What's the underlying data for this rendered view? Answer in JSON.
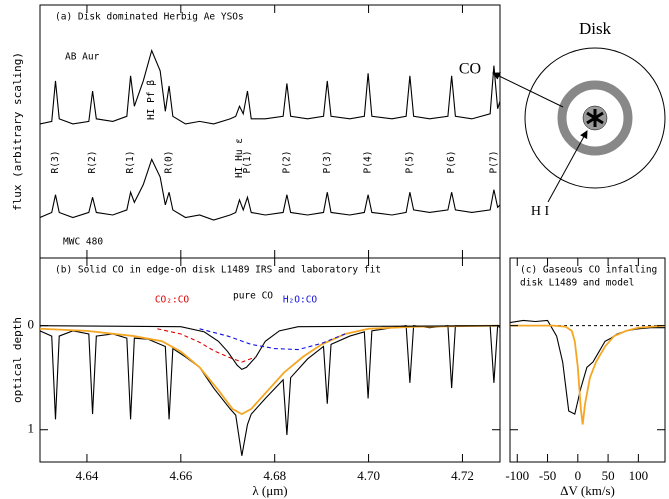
{
  "chart_data": [
    {
      "type": "line",
      "title": "(a) Disk dominated Herbig Ae YSOs",
      "ylabel": "flux (arbitrary scaling)",
      "xlim": [
        4.63,
        4.728
      ],
      "ylim": [
        0,
        10
      ],
      "x": [
        4.63,
        4.6325,
        4.6333,
        4.6341,
        4.637,
        4.6404,
        4.6412,
        4.642,
        4.6455,
        4.6485,
        4.6493,
        4.6501,
        4.652,
        4.6538,
        4.6556,
        4.6567,
        4.6575,
        4.6583,
        4.661,
        4.664,
        4.667,
        4.6705,
        4.6717,
        4.6725,
        4.6733,
        4.6742,
        4.675,
        4.678,
        4.6818,
        4.6826,
        4.6834,
        4.687,
        4.6904,
        4.6912,
        4.692,
        4.696,
        4.6991,
        4.6999,
        4.7007,
        4.705,
        4.708,
        4.7088,
        4.7096,
        4.713,
        4.7169,
        4.7177,
        4.7185,
        4.722,
        4.7259,
        4.7267,
        4.7275,
        4.728
      ],
      "series": [
        {
          "name": "AB Aur",
          "color": "#000000",
          "values": [
            5.3,
            5.4,
            7.0,
            5.5,
            5.3,
            5.4,
            6.6,
            5.5,
            5.4,
            5.6,
            7.2,
            6.0,
            7.0,
            8.2,
            7.4,
            5.8,
            6.8,
            5.6,
            5.3,
            5.4,
            5.3,
            5.5,
            5.6,
            6.0,
            5.7,
            6.6,
            5.5,
            5.5,
            5.6,
            6.9,
            5.6,
            5.5,
            5.6,
            7.0,
            5.6,
            5.5,
            5.6,
            7.3,
            5.6,
            5.5,
            5.6,
            7.2,
            5.6,
            5.5,
            5.6,
            7.2,
            5.6,
            5.5,
            5.7,
            7.6,
            5.9,
            6.2
          ]
        },
        {
          "name": "MWC 480",
          "color": "#000000",
          "values": [
            1.6,
            1.8,
            2.5,
            1.8,
            1.6,
            1.8,
            2.4,
            1.8,
            1.7,
            1.9,
            2.6,
            2.2,
            2.9,
            3.9,
            3.2,
            2.1,
            2.6,
            1.9,
            1.6,
            1.7,
            1.5,
            1.7,
            1.8,
            2.3,
            1.9,
            2.4,
            1.8,
            1.7,
            1.8,
            2.5,
            1.8,
            1.7,
            1.8,
            2.6,
            1.8,
            1.7,
            1.8,
            2.5,
            1.8,
            1.7,
            1.8,
            2.6,
            1.9,
            1.8,
            1.9,
            2.6,
            1.9,
            1.8,
            1.9,
            2.7,
            2.0,
            2.1
          ]
        }
      ],
      "line_ids": [
        {
          "label": "R(3)",
          "x": 4.6333
        },
        {
          "label": "R(2)",
          "x": 4.6412
        },
        {
          "label": "R(1)",
          "x": 4.6493
        },
        {
          "label": "HI Pf β",
          "x": 4.6538
        },
        {
          "label": "R(0)",
          "x": 4.6575
        },
        {
          "label": "HI Hu ε",
          "x": 4.6725
        },
        {
          "label": "P(1)",
          "x": 4.6742
        },
        {
          "label": "P(2)",
          "x": 4.6826
        },
        {
          "label": "P(3)",
          "x": 4.6912
        },
        {
          "label": "P(4)",
          "x": 4.6999
        },
        {
          "label": "P(5)",
          "x": 4.7088
        },
        {
          "label": "P(6)",
          "x": 4.7177
        },
        {
          "label": "P(7)",
          "x": 4.7267
        }
      ]
    },
    {
      "type": "line",
      "title": "(b) Solid CO in edge-on disk L1489 IRS and laboratory fit",
      "xlabel": "λ (μm)",
      "ylabel": "optical depth",
      "xlim": [
        4.63,
        4.728
      ],
      "ylim": [
        1.31,
        -0.65
      ],
      "xticks": [
        4.64,
        4.66,
        4.68,
        {
          "value": 4.7,
          "label": "4.70"
        },
        4.72
      ],
      "yticks": [
        0,
        1
      ],
      "series": [
        {
          "color": "#000000",
          "style": "solid",
          "x": [
            4.63,
            4.6325,
            4.6333,
            4.6341,
            4.637,
            4.6404,
            4.6412,
            4.642,
            4.6455,
            4.6485,
            4.6493,
            4.6501,
            4.653,
            4.6567,
            4.6575,
            4.6583,
            4.661,
            4.664,
            4.667,
            4.6705,
            4.6717,
            4.673,
            4.6742,
            4.675,
            4.678,
            4.6818,
            4.6826,
            4.6834,
            4.687,
            4.6904,
            4.6912,
            4.692,
            4.696,
            4.6991,
            4.6999,
            4.7007,
            4.705,
            4.708,
            4.7088,
            4.7096,
            4.713,
            4.7169,
            4.7177,
            4.7185,
            4.722,
            4.7259,
            4.7267,
            4.7275,
            4.728
          ],
          "values": [
            0.05,
            0.1,
            0.9,
            0.1,
            0.05,
            0.08,
            0.85,
            0.1,
            0.08,
            0.12,
            0.9,
            0.12,
            0.13,
            0.2,
            0.9,
            0.22,
            0.3,
            0.4,
            0.6,
            0.8,
            0.86,
            1.25,
            0.95,
            0.85,
            0.7,
            0.52,
            1.05,
            0.5,
            0.32,
            0.2,
            0.75,
            0.18,
            0.1,
            0.06,
            0.7,
            0.05,
            0.02,
            0.0,
            0.55,
            0.0,
            0.02,
            0.0,
            0.6,
            0.0,
            0.0,
            0.0,
            0.55,
            0.0,
            0.02
          ]
        },
        {
          "color": "#f5a623",
          "style": "solid",
          "x": [
            4.63,
            4.64,
            4.65,
            4.656,
            4.66,
            4.664,
            4.668,
            4.671,
            4.673,
            4.675,
            4.678,
            4.682,
            4.686,
            4.69,
            4.695,
            4.7,
            4.71,
            4.728
          ],
          "values": [
            0.03,
            0.05,
            0.1,
            0.15,
            0.25,
            0.4,
            0.62,
            0.8,
            0.85,
            0.8,
            0.65,
            0.45,
            0.3,
            0.18,
            0.08,
            0.03,
            0.01,
            0.0
          ]
        },
        {
          "name": "pure CO",
          "color": "#000000",
          "style": "solid",
          "x": [
            4.63,
            4.66,
            4.665,
            4.668,
            4.67,
            4.672,
            4.673,
            4.674,
            4.676,
            4.678,
            4.681,
            4.685,
            4.728
          ],
          "values": [
            0,
            0.01,
            0.06,
            0.15,
            0.25,
            0.38,
            0.42,
            0.4,
            0.3,
            0.15,
            0.05,
            0.01,
            0
          ]
        },
        {
          "name": "CO₂:CO",
          "color": "#e00000",
          "style": "dashed",
          "x": [
            4.655,
            4.66,
            4.664,
            4.667,
            4.67,
            4.673,
            4.676
          ],
          "values": [
            0.03,
            0.08,
            0.16,
            0.24,
            0.3,
            0.35,
            0.3
          ]
        },
        {
          "name": "H₂O:CO",
          "color": "#1010e0",
          "style": "dashed",
          "x": [
            4.664,
            4.67,
            4.675,
            4.68,
            4.685,
            4.69,
            4.695
          ],
          "values": [
            0.03,
            0.1,
            0.18,
            0.22,
            0.23,
            0.17,
            0.08
          ]
        }
      ]
    },
    {
      "type": "line",
      "title": [
        "(c) Gaseous CO infalling",
        "disk L1489 and model"
      ],
      "xlabel": "ΔV (km/s)",
      "xlim": [
        -112,
        144
      ],
      "ylim": [
        1.31,
        -0.65
      ],
      "xticks": [
        -100,
        -50,
        0,
        50,
        100
      ],
      "yticks": [
        0,
        1
      ],
      "hline": 0,
      "series": [
        {
          "color": "#000000",
          "style": "solid",
          "x": [
            -112,
            -90,
            -70,
            -50,
            -35,
            -25,
            -15,
            -5,
            5,
            15,
            25,
            35,
            45,
            55,
            65,
            80,
            100,
            120,
            144
          ],
          "values": [
            -0.03,
            -0.05,
            -0.04,
            -0.05,
            0.1,
            0.35,
            0.82,
            0.85,
            0.6,
            0.4,
            0.35,
            0.25,
            0.15,
            0.12,
            0.08,
            0.05,
            0.03,
            0.02,
            0.02
          ]
        },
        {
          "color": "#f5a623",
          "style": "solid",
          "x": [
            -112,
            -40,
            -20,
            -10,
            -5,
            0,
            5,
            8,
            12,
            20,
            30,
            45,
            60,
            80,
            100,
            144
          ],
          "values": [
            0,
            0,
            0.01,
            0.05,
            0.15,
            0.4,
            0.8,
            0.95,
            0.75,
            0.5,
            0.35,
            0.2,
            0.1,
            0.05,
            0.02,
            0
          ]
        }
      ]
    }
  ],
  "diagram": {
    "title": "Disk",
    "labels": [
      "CO",
      "H I"
    ]
  }
}
